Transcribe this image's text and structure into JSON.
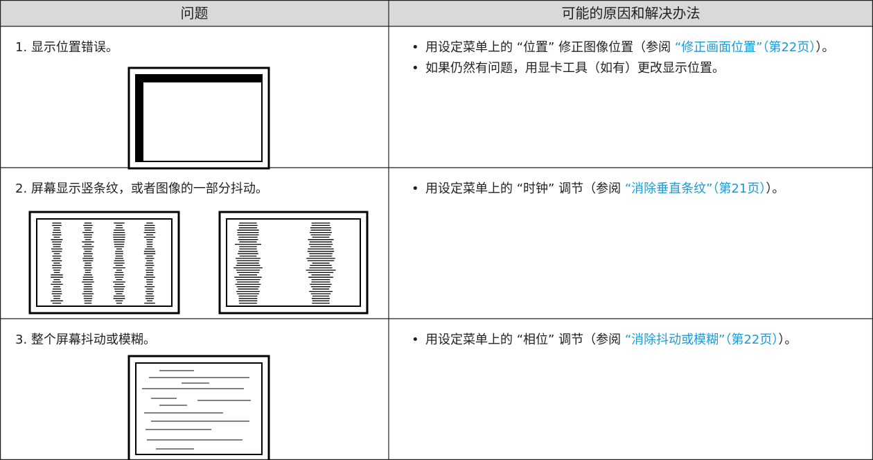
{
  "table": {
    "header": [
      "问题",
      "可能的原因和解决办法"
    ],
    "rows": [
      {
        "problem": "1. 显示位置错误。",
        "solutions": [
          {
            "text": "用设定菜单上的 “位置” 修正图像位置（参阅 ",
            "link": "“修正画面位置”（第22页）",
            "tail": "）。"
          },
          {
            "text": "如果仍然有问题，用显卡工具（如有）更改显示位置。"
          }
        ]
      },
      {
        "problem": "2. 屏幕显示竖条纹，或者图像的一部分抖动。",
        "solutions": [
          {
            "text": "用设定菜单上的 “时钟” 调节（参阅 ",
            "link": "“消除垂直条纹”（第21页）",
            "tail": "）。"
          }
        ]
      },
      {
        "problem": "3. 整个屏幕抖动或模糊。",
        "solutions": [
          {
            "text": "用设定菜单上的 “相位” 调节（参阅 ",
            "link": "“消除抖动或模糊”（第22页）",
            "tail": "）。"
          }
        ]
      }
    ]
  }
}
